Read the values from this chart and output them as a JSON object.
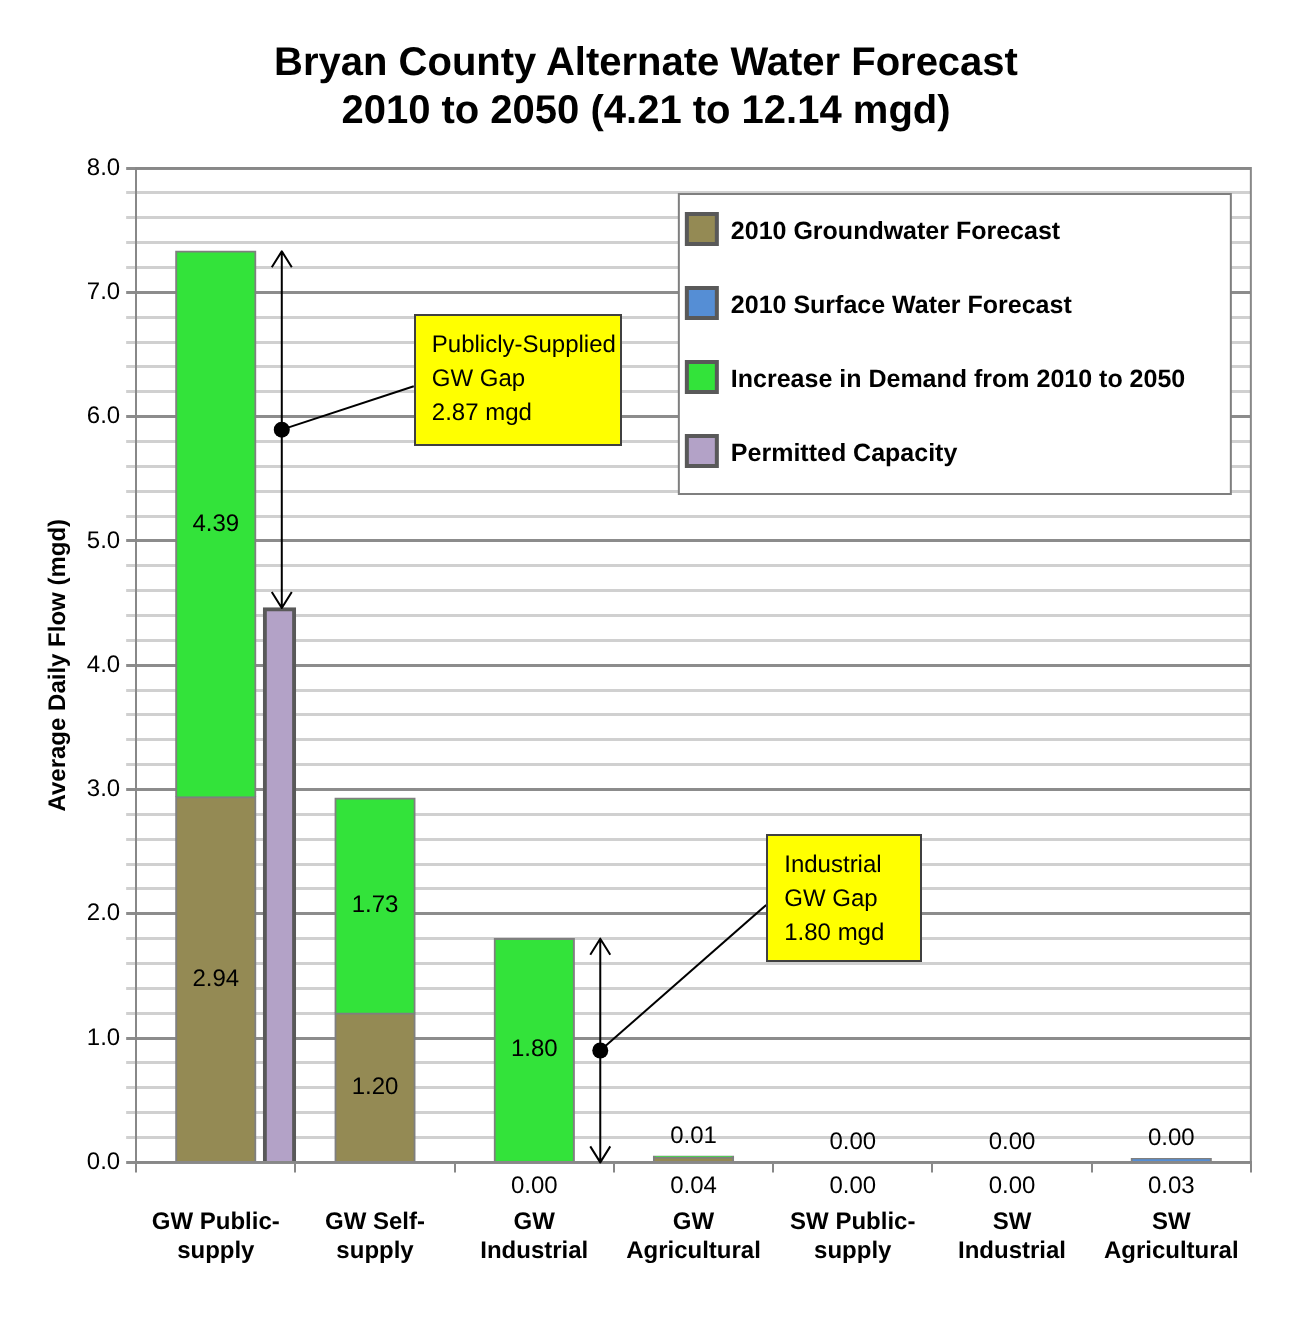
{
  "chart_data": {
    "type": "bar",
    "title": "Bryan County Alternate Water Forecast\n2010 to 2050 (4.21 to 12.14 mgd)",
    "ylabel": "Average Daily Flow (mgd)",
    "categories": [
      "GW Public-supply",
      "GW Self-supply",
      "GW Industrial",
      "GW Agricultural",
      "SW Public-supply",
      "SW Industrial",
      "SW Agricultural"
    ],
    "series": [
      {
        "name": "2010 Groundwater Forecast",
        "color": "#948a54",
        "values": [
          2.94,
          1.2,
          0.0,
          0.04,
          null,
          null,
          null
        ],
        "value_labels": [
          "2.94",
          "1.20",
          "0.00",
          "0.04",
          null,
          null,
          null
        ]
      },
      {
        "name": "2010 Surface Water Forecast",
        "color": "#558ed5",
        "values": [
          null,
          null,
          null,
          null,
          0.0,
          0.0,
          0.03
        ],
        "value_labels": [
          null,
          null,
          null,
          null,
          "0.00",
          "0.00",
          "0.03"
        ]
      },
      {
        "name": "Increase in Demand from 2010 to 2050",
        "color": "#33e33a",
        "values": [
          4.39,
          1.73,
          1.8,
          0.01,
          0.0,
          0.0,
          0.0
        ],
        "base": [
          2.94,
          1.2,
          null,
          0.04,
          null,
          null,
          0.03
        ],
        "value_labels": [
          "4.39",
          "1.73",
          "1.80",
          "0.01",
          "0.00",
          "0.00",
          "0.00"
        ]
      },
      {
        "name": "Permitted Capacity",
        "color": "#b3a2c7",
        "values": [
          4.46,
          null,
          null,
          null,
          null,
          null,
          null
        ]
      }
    ],
    "ylim": [
      0,
      8
    ],
    "yticks": [
      {
        "value": 0,
        "label": "0.0"
      },
      {
        "value": 0.2,
        "label": null
      },
      {
        "value": 0.4,
        "label": null
      },
      {
        "value": 0.6,
        "label": null
      },
      {
        "value": 0.8,
        "label": null
      },
      {
        "value": 1,
        "label": "1.0"
      },
      {
        "value": 1.2,
        "label": null
      },
      {
        "value": 1.4,
        "label": null
      },
      {
        "value": 1.6,
        "label": null
      },
      {
        "value": 1.8,
        "label": null
      },
      {
        "value": 2,
        "label": "2.0"
      },
      {
        "value": 2.2,
        "label": null
      },
      {
        "value": 2.4,
        "label": null
      },
      {
        "value": 2.6,
        "label": null
      },
      {
        "value": 2.8,
        "label": null
      },
      {
        "value": 3,
        "label": "3.0"
      },
      {
        "value": 3.2,
        "label": null
      },
      {
        "value": 3.4,
        "label": null
      },
      {
        "value": 3.6,
        "label": null
      },
      {
        "value": 3.8,
        "label": null
      },
      {
        "value": 4,
        "label": "4.0"
      },
      {
        "value": 4.2,
        "label": null
      },
      {
        "value": 4.4,
        "label": null
      },
      {
        "value": 4.6,
        "label": null
      },
      {
        "value": 4.8,
        "label": null
      },
      {
        "value": 5,
        "label": "5.0"
      },
      {
        "value": 5.2,
        "label": null
      },
      {
        "value": 5.4,
        "label": null
      },
      {
        "value": 5.6,
        "label": null
      },
      {
        "value": 5.8,
        "label": null
      },
      {
        "value": 6,
        "label": "6.0"
      },
      {
        "value": 6.2,
        "label": null
      },
      {
        "value": 6.4,
        "label": null
      },
      {
        "value": 6.6,
        "label": null
      },
      {
        "value": 6.8,
        "label": null
      },
      {
        "value": 7,
        "label": "7.0"
      },
      {
        "value": 7.2,
        "label": null
      },
      {
        "value": 7.4,
        "label": null
      },
      {
        "value": 7.6,
        "label": null
      },
      {
        "value": 7.8,
        "label": null
      },
      {
        "value": 8,
        "label": "8.0"
      }
    ],
    "grid": "y",
    "legend": "top right",
    "annotations": [
      "Publicly-Supplied\nGW Gap\n2.87 mgd",
      "Industrial\nGW Gap\n1.80 mgd"
    ]
  }
}
